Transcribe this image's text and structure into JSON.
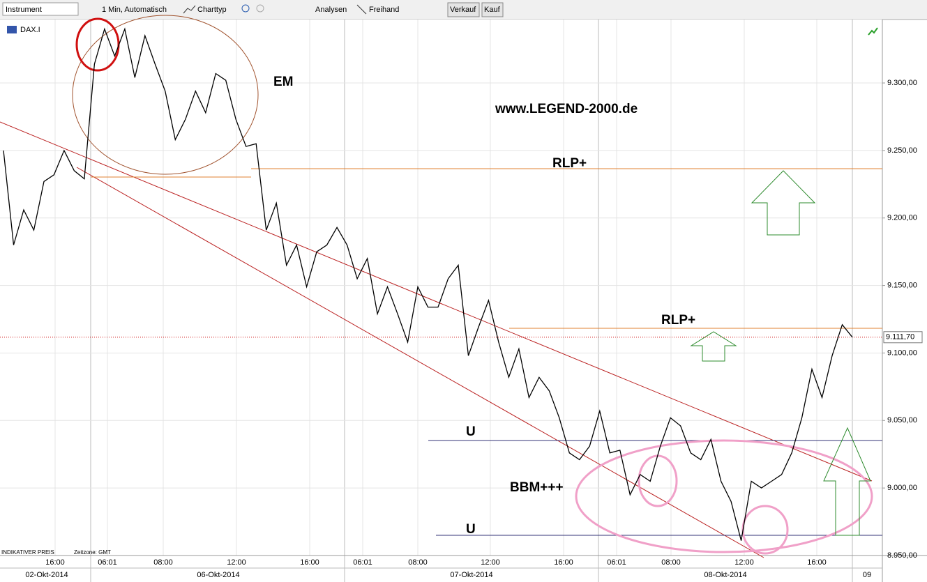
{
  "toolbar": {
    "instrument": "Instrument",
    "interval": "1 Min, Automatisch",
    "chart_type": "Charttyp",
    "analyses": "Analysen",
    "freehand": "Freihand",
    "sell": "Verkauf",
    "buy": "Kauf"
  },
  "chart_data": {
    "type": "line",
    "symbol": "DAX.I",
    "title": "www.LEGEND-2000.de",
    "color": "#000000",
    "values": [
      9250,
      9180,
      9206,
      9191,
      9227,
      9232,
      9250,
      9235,
      9229,
      9314,
      9340,
      9320,
      9340,
      9304,
      9335,
      9314,
      9294,
      9258,
      9273,
      9294,
      9278,
      9307,
      9302,
      9273,
      9253,
      9255,
      9191,
      9211,
      9165,
      9180,
      9149,
      9175,
      9180,
      9193,
      9180,
      9155,
      9170,
      9129,
      9149,
      9129,
      9108,
      9149,
      9134,
      9134,
      9155,
      9165,
      9098,
      9119,
      9139,
      9108,
      9082,
      9103,
      9067,
      9082,
      9072,
      9052,
      9026,
      9021,
      9031,
      9057,
      9026,
      9028,
      8995,
      9010,
      9005,
      9031,
      9052,
      9046,
      9026,
      9021,
      9036,
      9005,
      8990,
      8961,
      9005,
      9000,
      9005,
      9010,
      9026,
      9052,
      9088,
      9067,
      9098,
      9121,
      9111.7
    ],
    "ylim": [
      8950,
      9347
    ],
    "yticks": [
      {
        "value": 8950,
        "label": "8.950,00"
      },
      {
        "value": 9000,
        "label": "9.000,00"
      },
      {
        "value": 9050,
        "label": "9.050,00"
      },
      {
        "value": 9100,
        "label": "9.100,00"
      },
      {
        "value": 9150,
        "label": "9.150,00"
      },
      {
        "value": 9200,
        "label": "9.200,00"
      },
      {
        "value": 9250,
        "label": "9.250,00"
      },
      {
        "value": 9300,
        "label": "9.300,00"
      }
    ],
    "last_price": {
      "value": 9111.7,
      "label": "9.111,70"
    },
    "time_labels": [
      "16:00",
      "06:01",
      "08:00",
      "12:00",
      "16:00",
      "06:01",
      "08:00",
      "12:00",
      "16:00",
      "06:01",
      "08:00",
      "12:00",
      "16:00"
    ],
    "date_labels": [
      "02-Okt-2014",
      "06-Okt-2014",
      "07-Okt-2014",
      "08-Okt-2014",
      "09"
    ],
    "annotations": [
      "EM",
      "RLP+",
      "RLP+",
      "U",
      "U",
      "BBM+++"
    ],
    "price_type": "INDIKATIVER PREIS",
    "timezone": "Zeitzone: GMT"
  }
}
